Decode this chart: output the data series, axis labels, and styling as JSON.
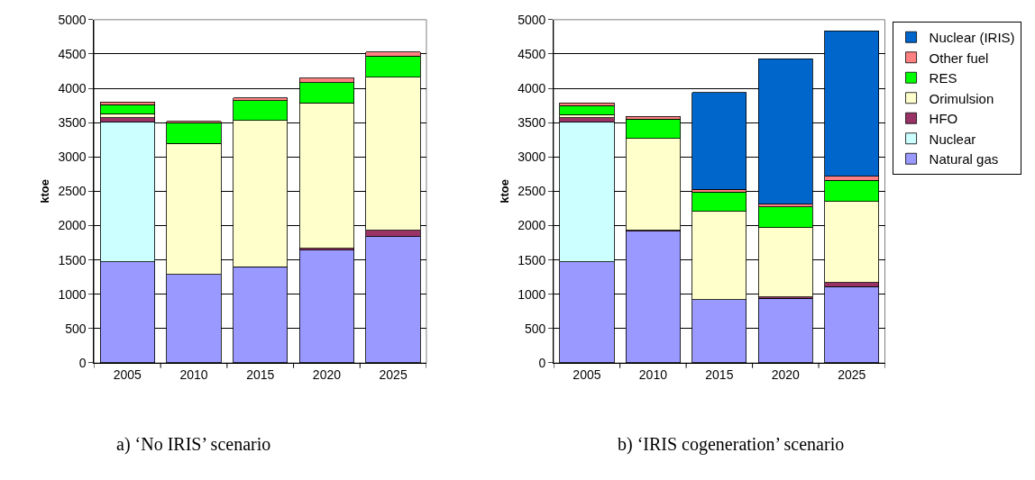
{
  "chart_data": [
    {
      "type": "bar",
      "stacked": true,
      "ylabel": "ktoe",
      "categories": [
        "2005",
        "2010",
        "2015",
        "2020",
        "2025"
      ],
      "ylim": [
        0,
        5000
      ],
      "yticks": [
        0,
        500,
        1000,
        1500,
        2000,
        2500,
        3000,
        3500,
        4000,
        4500,
        5000
      ],
      "grid": "y",
      "legend": false,
      "annotations": [
        "a) ‘No IRIS’ scenario"
      ],
      "series": [
        {
          "color": "#9999ff",
          "values": [
            1470,
            1290,
            1400,
            1640,
            1840
          ]
        },
        {
          "color": "#ccffff",
          "values": [
            2040,
            null,
            null,
            null,
            null
          ]
        },
        {
          "color": "#993366",
          "values": [
            60,
            null,
            null,
            30,
            90
          ]
        },
        {
          "color": "#ffffcc",
          "values": [
            60,
            1910,
            2130,
            2120,
            2230
          ]
        },
        {
          "color": "#00ff00",
          "values": [
            130,
            300,
            290,
            290,
            310
          ]
        },
        {
          "color": "#ff8080",
          "values": [
            40,
            20,
            40,
            70,
            60
          ]
        }
      ]
    },
    {
      "type": "bar",
      "stacked": true,
      "ylabel": "ktoe",
      "categories": [
        "2005",
        "2010",
        "2015",
        "2020",
        "2025"
      ],
      "ylim": [
        0,
        5000
      ],
      "yticks": [
        0,
        500,
        1000,
        1500,
        2000,
        2500,
        3000,
        3500,
        4000,
        4500,
        5000
      ],
      "grid": "y",
      "legend": "right",
      "annotations": [
        "b) ‘IRIS cogeneration’ scenario"
      ],
      "series": [
        {
          "name": "Natural gas",
          "color": "#9999ff",
          "values": [
            1470,
            1920,
            920,
            940,
            1110
          ]
        },
        {
          "name": "Nuclear",
          "color": "#ccffff",
          "values": [
            2040,
            null,
            null,
            null,
            null
          ]
        },
        {
          "name": "HFO",
          "color": "#993366",
          "values": [
            60,
            10,
            null,
            20,
            60
          ]
        },
        {
          "name": "Orimulsion",
          "color": "#ffffcc",
          "values": [
            50,
            1340,
            1290,
            1010,
            1180
          ]
        },
        {
          "name": "RES",
          "color": "#00ff00",
          "values": [
            130,
            280,
            280,
            300,
            310
          ]
        },
        {
          "name": "Other fuel",
          "color": "#ff8080",
          "values": [
            40,
            40,
            40,
            40,
            60
          ]
        },
        {
          "name": "Nuclear (IRIS)",
          "color": "#0066cc",
          "values": [
            null,
            null,
            1410,
            2120,
            2120
          ]
        }
      ]
    }
  ]
}
